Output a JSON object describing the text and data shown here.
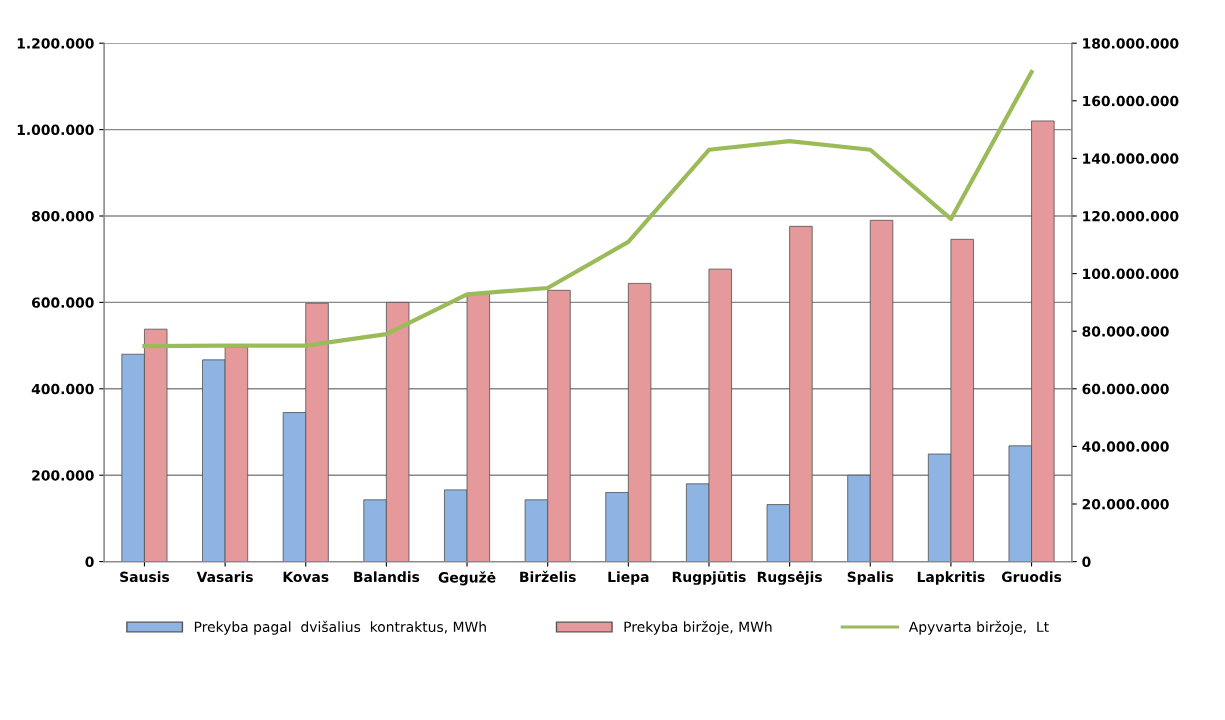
{
  "chart_data": {
    "type": "bar",
    "categories": [
      "Sausis",
      "Vasaris",
      "Kovas",
      "Balandis",
      "Gegužė",
      "Birželis",
      "Liepa",
      "Rugpjūtis",
      "Rugsėjis",
      "Spalis",
      "Lapkritis",
      "Gruodis"
    ],
    "series": [
      {
        "name": "Prekyba pagal  dvišalius  kontraktus, MWh",
        "color": "#8db4e2",
        "values": [
          480000,
          467000,
          345000,
          143000,
          166000,
          143000,
          160000,
          180000,
          132000,
          200000,
          249000,
          268000
        ]
      },
      {
        "name": "Prekyba biržoje, MWh",
        "color": "#e6999a",
        "values": [
          538000,
          497000,
          598000,
          600000,
          620000,
          628000,
          644000,
          677000,
          776000,
          790000,
          746000,
          1020000
        ]
      },
      {
        "name": "Apyvarta biržoje,  Lt",
        "type": "line",
        "axis": "y2",
        "color": "#9bbb59",
        "values": [
          74800000,
          75000000,
          75000000,
          79000000,
          92800000,
          95000000,
          111000000,
          143000000,
          146000000,
          143000000,
          119000000,
          170000000
        ]
      }
    ],
    "ylim": [
      0,
      1200000
    ],
    "yticks": [
      {
        "value": 0,
        "label": "0"
      },
      {
        "value": 200000,
        "label": "200.000"
      },
      {
        "value": 400000,
        "label": "400.000"
      },
      {
        "value": 600000,
        "label": "600.000"
      },
      {
        "value": 800000,
        "label": "800.000"
      },
      {
        "value": 1000000,
        "label": "1.000.000"
      },
      {
        "value": 1200000,
        "label": "1.200.000"
      }
    ],
    "y2lim": [
      0,
      180000000
    ],
    "y2ticks": [
      {
        "value": 0,
        "label": "0"
      },
      {
        "value": 20000000,
        "label": "20.000.000"
      },
      {
        "value": 40000000,
        "label": "40.000.000"
      },
      {
        "value": 60000000,
        "label": "60.000.000"
      },
      {
        "value": 80000000,
        "label": "80.000.000"
      },
      {
        "value": 100000000,
        "label": "100.000.000"
      },
      {
        "value": 120000000,
        "label": "120.000.000"
      },
      {
        "value": 140000000,
        "label": "140.000.000"
      },
      {
        "value": 160000000,
        "label": "160.000.000"
      },
      {
        "value": 180000000,
        "label": "180.000.000"
      }
    ],
    "grid": "y",
    "legend": "bottom"
  }
}
